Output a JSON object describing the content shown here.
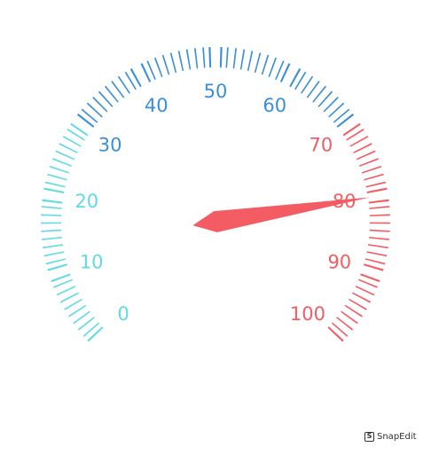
{
  "chart_data": {
    "type": "gauge",
    "min": 0,
    "max": 100,
    "value": 80,
    "tick_labels": [
      "0",
      "10",
      "20",
      "30",
      "40",
      "50",
      "60",
      "70",
      "80",
      "90",
      "100"
    ],
    "color_bands": [
      {
        "from": 0,
        "to": 30,
        "color": "#5fdbe1"
      },
      {
        "from": 30,
        "to": 70,
        "color": "#3a8fd6"
      },
      {
        "from": 70,
        "to": 100,
        "color": "#f35c63"
      }
    ]
  },
  "watermark": {
    "icon": "S",
    "text": "SnapEdit"
  }
}
